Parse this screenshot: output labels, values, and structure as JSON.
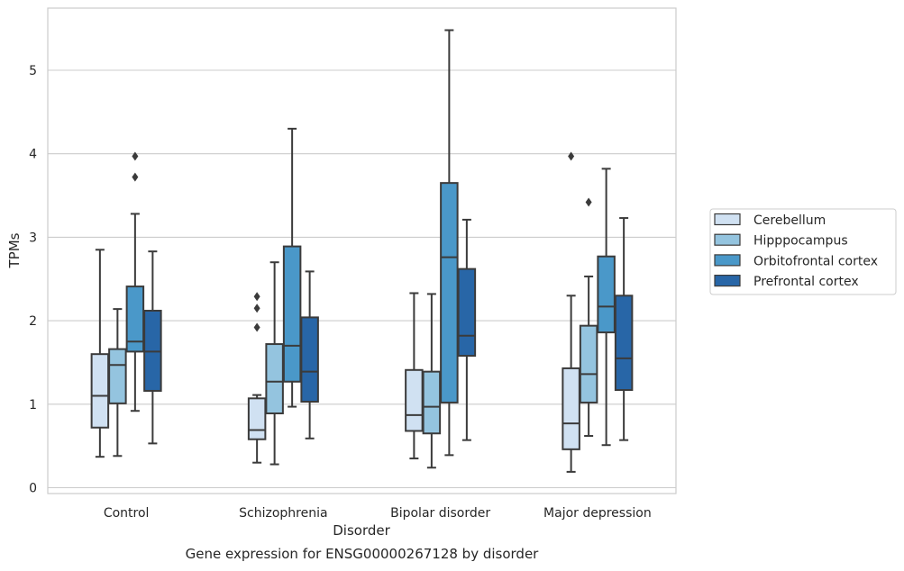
{
  "caption": "Gene expression for ENSG00000267128 by disorder",
  "chart_data": {
    "type": "box",
    "xlabel": "Disorder",
    "ylabel": "TPMs",
    "ylim": [
      -0.07,
      5.8
    ],
    "yticks": [
      0,
      1,
      2,
      3,
      4,
      5
    ],
    "grid": "horizontal",
    "legend_position": "right",
    "categories": [
      "Control",
      "Schizophrenia",
      "Bipolar disorder",
      "Major depression"
    ],
    "series": [
      {
        "name": "Cerebellum",
        "color": "#d0e1f2",
        "boxes": [
          {
            "whisker_low": 0.37,
            "q1": 0.72,
            "median": 1.1,
            "q3": 1.6,
            "whisker_high": 2.85,
            "outliers": []
          },
          {
            "whisker_low": 0.3,
            "q1": 0.58,
            "median": 0.69,
            "q3": 1.07,
            "whisker_high": 1.11,
            "outliers": [
              1.92,
              2.15,
              2.29
            ]
          },
          {
            "whisker_low": 0.35,
            "q1": 0.68,
            "median": 0.87,
            "q3": 1.41,
            "whisker_high": 2.33,
            "outliers": []
          },
          {
            "whisker_low": 0.19,
            "q1": 0.46,
            "median": 0.77,
            "q3": 1.43,
            "whisker_high": 2.3,
            "outliers": [
              3.97
            ]
          }
        ]
      },
      {
        "name": "Hipppocampus",
        "color": "#94c4df",
        "boxes": [
          {
            "whisker_low": 0.38,
            "q1": 1.01,
            "median": 1.47,
            "q3": 1.66,
            "whisker_high": 2.14,
            "outliers": []
          },
          {
            "whisker_low": 0.28,
            "q1": 0.89,
            "median": 1.27,
            "q3": 1.72,
            "whisker_high": 2.7,
            "outliers": []
          },
          {
            "whisker_low": 0.24,
            "q1": 0.65,
            "median": 0.97,
            "q3": 1.39,
            "whisker_high": 2.32,
            "outliers": []
          },
          {
            "whisker_low": 0.62,
            "q1": 1.02,
            "median": 1.36,
            "q3": 1.94,
            "whisker_high": 2.53,
            "outliers": [
              3.42
            ]
          }
        ]
      },
      {
        "name": "Orbitofrontal cortex",
        "color": "#4a98c9",
        "boxes": [
          {
            "whisker_low": 0.92,
            "q1": 1.63,
            "median": 1.75,
            "q3": 2.41,
            "whisker_high": 3.28,
            "outliers": [
              3.72,
              3.97
            ]
          },
          {
            "whisker_low": 0.97,
            "q1": 1.27,
            "median": 1.7,
            "q3": 2.89,
            "whisker_high": 4.3,
            "outliers": []
          },
          {
            "whisker_low": 0.39,
            "q1": 1.02,
            "median": 2.76,
            "q3": 3.65,
            "whisker_high": 5.48,
            "outliers": []
          },
          {
            "whisker_low": 0.51,
            "q1": 1.86,
            "median": 2.17,
            "q3": 2.77,
            "whisker_high": 3.82,
            "outliers": []
          }
        ]
      },
      {
        "name": "Prefrontal cortex",
        "color": "#2866a7",
        "boxes": [
          {
            "whisker_low": 0.53,
            "q1": 1.16,
            "median": 1.63,
            "q3": 2.12,
            "whisker_high": 2.83,
            "outliers": []
          },
          {
            "whisker_low": 0.59,
            "q1": 1.03,
            "median": 1.39,
            "q3": 2.04,
            "whisker_high": 2.59,
            "outliers": []
          },
          {
            "whisker_low": 0.57,
            "q1": 1.58,
            "median": 1.82,
            "q3": 2.62,
            "whisker_high": 3.21,
            "outliers": []
          },
          {
            "whisker_low": 0.57,
            "q1": 1.17,
            "median": 1.55,
            "q3": 2.3,
            "whisker_high": 3.23,
            "outliers": []
          }
        ]
      }
    ]
  }
}
